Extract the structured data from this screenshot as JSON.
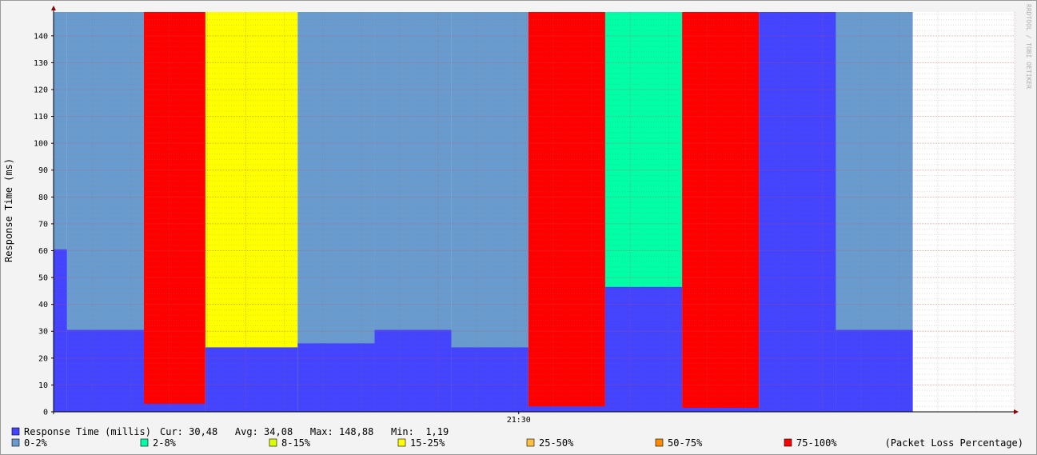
{
  "chart_data": {
    "type": "area",
    "title": "",
    "ylabel": "Response Time (ms)",
    "xlabel": "",
    "ylim": [
      0,
      148.88
    ],
    "yticks": [
      0,
      10,
      20,
      30,
      40,
      50,
      60,
      70,
      80,
      90,
      100,
      110,
      120,
      130,
      140
    ],
    "x_tick_labels": [
      {
        "label": "21:30",
        "slot": 12.1
      }
    ],
    "slot_count": 25,
    "data_slots": 22.5,
    "grid": true,
    "segments": [
      {
        "start": 0,
        "end": 0.35,
        "response": 60.5,
        "loss_class": "0-2%"
      },
      {
        "start": 0.35,
        "end": 2.35,
        "response": 30.5,
        "loss_class": "0-2%"
      },
      {
        "start": 2.35,
        "end": 3.95,
        "response": 3.0,
        "loss_class": "75-100%"
      },
      {
        "start": 3.95,
        "end": 6.35,
        "response": 24.0,
        "loss_class": "15-25%"
      },
      {
        "start": 6.35,
        "end": 8.35,
        "response": 25.5,
        "loss_class": "0-2%"
      },
      {
        "start": 8.35,
        "end": 10.35,
        "response": 30.5,
        "loss_class": "0-2%"
      },
      {
        "start": 10.35,
        "end": 12.35,
        "response": 24.0,
        "loss_class": "0-2%"
      },
      {
        "start": 12.35,
        "end": 14.35,
        "response": 2.0,
        "loss_class": "75-100%"
      },
      {
        "start": 14.35,
        "end": 16.35,
        "response": 46.5,
        "loss_class": "2-8%"
      },
      {
        "start": 16.35,
        "end": 18.35,
        "response": 1.5,
        "loss_class": "75-100%"
      },
      {
        "start": 18.35,
        "end": 20.35,
        "response": 148.88,
        "loss_class": "0-2%"
      },
      {
        "start": 20.35,
        "end": 22.35,
        "response": 30.5,
        "loss_class": "0-2%"
      }
    ],
    "response_color": "#4444ff",
    "loss_legend": [
      {
        "label": "0-2%",
        "color": "#6a9bcf"
      },
      {
        "label": "2-8%",
        "color": "#00ffa6"
      },
      {
        "label": "8-15%",
        "color": "#ddff00"
      },
      {
        "label": "15-25%",
        "color": "#ffff00"
      },
      {
        "label": "25-50%",
        "color": "#ffbf40"
      },
      {
        "label": "50-75%",
        "color": "#ff8a00"
      },
      {
        "label": "75-100%",
        "color": "#ff0000"
      }
    ],
    "loss_legend_suffix": "(Packet Loss Percentage)",
    "response_legend": {
      "name": "Response Time (millis)",
      "stats": "Cur: 30,48   Avg: 34,08   Max: 148,88   Min:  1,19"
    },
    "watermark": "RRDTOOL / TOBI OETIKER"
  }
}
